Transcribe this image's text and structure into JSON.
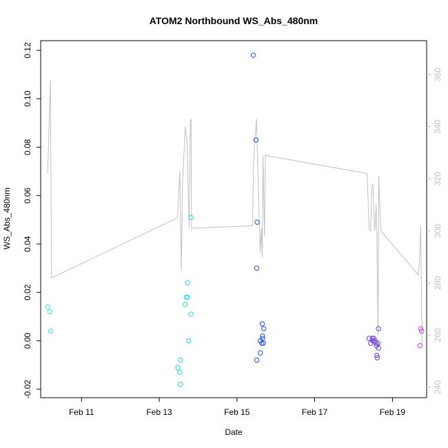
{
  "chart_data": {
    "type": "scatter",
    "title": "ATOM2 Northbound WS_Abs_480nm",
    "xlabel": "Date",
    "ylabel": "WS_Abs_480nm",
    "x_tick_labels": [
      "Feb 11",
      "Feb 13",
      "Feb 15",
      "Feb 17",
      "Feb 19"
    ],
    "x_tick_values": [
      11,
      13,
      15,
      17,
      19
    ],
    "xlim": [
      9.95,
      19.88
    ],
    "ylim": [
      -0.0235,
      0.124
    ],
    "y_ticks": [
      -0.02,
      0.0,
      0.02,
      0.04,
      0.06,
      0.08,
      0.1,
      0.12
    ],
    "y_tick_labels": [
      "-0.02",
      "0.00",
      "0.02",
      "0.04",
      "0.06",
      "0.08",
      "0.10",
      "0.12"
    ],
    "y2lim": [
      236,
      373
    ],
    "y2_ticks": [
      240,
      260,
      280,
      300,
      320,
      340,
      360
    ],
    "y2_tick_labels": [
      "240",
      "260",
      "280",
      "300",
      "320",
      "340",
      "360"
    ],
    "grid": false,
    "points": [
      {
        "x": 10.13,
        "y": 0.014,
        "color": "#2ee8c8"
      },
      {
        "x": 10.19,
        "y": 0.012,
        "color": "#2ee8c8"
      },
      {
        "x": 10.21,
        "y": 0.004,
        "color": "#2ee8c8"
      },
      {
        "x": 13.48,
        "y": -0.011,
        "color": "#22d4ee"
      },
      {
        "x": 13.53,
        "y": -0.013,
        "color": "#22d4ee"
      },
      {
        "x": 13.55,
        "y": -0.008,
        "color": "#22d4ee"
      },
      {
        "x": 13.55,
        "y": -0.018,
        "color": "#22d4ee"
      },
      {
        "x": 13.67,
        "y": 0.015,
        "color": "#22d4ee"
      },
      {
        "x": 13.7,
        "y": 0.018,
        "color": "#22d4ee"
      },
      {
        "x": 13.73,
        "y": 0.018,
        "color": "#22d4ee"
      },
      {
        "x": 13.73,
        "y": 0.024,
        "color": "#22d4ee"
      },
      {
        "x": 13.76,
        "y": 0.0,
        "color": "#22d4ee"
      },
      {
        "x": 13.82,
        "y": 0.011,
        "color": "#22d4ee"
      },
      {
        "x": 13.82,
        "y": 0.051,
        "color": "#22d4ee"
      },
      {
        "x": 15.42,
        "y": 0.118,
        "color": "#1f4fe8"
      },
      {
        "x": 15.49,
        "y": 0.083,
        "color": "#1f4fe8"
      },
      {
        "x": 15.52,
        "y": 0.049,
        "color": "#1f4fe8"
      },
      {
        "x": 15.51,
        "y": 0.03,
        "color": "#1f4fe8"
      },
      {
        "x": 15.51,
        "y": -0.008,
        "color": "#1f4fe8"
      },
      {
        "x": 15.6,
        "y": -0.005,
        "color": "#1f4fe8"
      },
      {
        "x": 15.6,
        "y": 0.0,
        "color": "#1f4fe8"
      },
      {
        "x": 15.64,
        "y": -0.001,
        "color": "#1f4fe8"
      },
      {
        "x": 15.66,
        "y": 0.001,
        "color": "#1f4fe8"
      },
      {
        "x": 15.66,
        "y": 0.002,
        "color": "#1f4fe8"
      },
      {
        "x": 15.68,
        "y": -0.001,
        "color": "#1f4fe8"
      },
      {
        "x": 15.65,
        "y": 0.007,
        "color": "#1f4fe8"
      },
      {
        "x": 15.69,
        "y": 0.005,
        "color": "#1f4fe8"
      },
      {
        "x": 18.4,
        "y": 0.001,
        "color": "#6a3ae0"
      },
      {
        "x": 18.44,
        "y": -0.001,
        "color": "#6a3ae0"
      },
      {
        "x": 18.48,
        "y": 0.001,
        "color": "#6a3ae0"
      },
      {
        "x": 18.5,
        "y": 0.0,
        "color": "#6a3ae0"
      },
      {
        "x": 18.52,
        "y": 0.001,
        "color": "#6a3ae0"
      },
      {
        "x": 18.55,
        "y": 0.0,
        "color": "#6a3ae0"
      },
      {
        "x": 18.58,
        "y": -0.001,
        "color": "#6a3ae0"
      },
      {
        "x": 18.59,
        "y": -0.002,
        "color": "#6a3ae0"
      },
      {
        "x": 18.63,
        "y": -0.001,
        "color": "#6a3ae0"
      },
      {
        "x": 18.64,
        "y": -0.003,
        "color": "#6a3ae0"
      },
      {
        "x": 18.6,
        "y": -0.006,
        "color": "#6a3ae0"
      },
      {
        "x": 18.61,
        "y": -0.007,
        "color": "#6a3ae0"
      },
      {
        "x": 18.64,
        "y": 0.005,
        "color": "#6a3ae0"
      },
      {
        "x": 19.71,
        "y": -0.002,
        "color": "#d43ee0"
      },
      {
        "x": 19.73,
        "y": 0.005,
        "color": "#d43ee0"
      },
      {
        "x": 19.75,
        "y": 0.004,
        "color": "#d43ee0"
      }
    ],
    "secondary_line": {
      "axis": "right",
      "color": "#c0c0c0",
      "points": [
        [
          10.13,
          322
        ],
        [
          10.2,
          358
        ],
        [
          10.23,
          282
        ],
        [
          13.47,
          305
        ],
        [
          13.53,
          323
        ],
        [
          13.57,
          285
        ],
        [
          13.6,
          318
        ],
        [
          13.67,
          340
        ],
        [
          13.72,
          333
        ],
        [
          13.77,
          301
        ],
        [
          13.8,
          342
        ],
        [
          13.82,
          343
        ],
        [
          13.83,
          301
        ],
        [
          15.4,
          302
        ],
        [
          15.43,
          327
        ],
        [
          15.5,
          343
        ],
        [
          15.55,
          317
        ],
        [
          15.6,
          292
        ],
        [
          15.63,
          301
        ],
        [
          15.65,
          290
        ],
        [
          15.67,
          329
        ],
        [
          15.71,
          298
        ],
        [
          15.73,
          329
        ],
        [
          18.35,
          322
        ],
        [
          18.4,
          301
        ],
        [
          18.44,
          300
        ],
        [
          18.47,
          317
        ],
        [
          18.5,
          318
        ],
        [
          18.53,
          305
        ],
        [
          18.55,
          300
        ],
        [
          18.58,
          310
        ],
        [
          18.6,
          299
        ],
        [
          18.63,
          260
        ],
        [
          18.65,
          321
        ],
        [
          18.7,
          300
        ],
        [
          19.67,
          283
        ],
        [
          19.7,
          290
        ],
        [
          19.73,
          302
        ],
        [
          19.76,
          256
        ]
      ]
    }
  }
}
